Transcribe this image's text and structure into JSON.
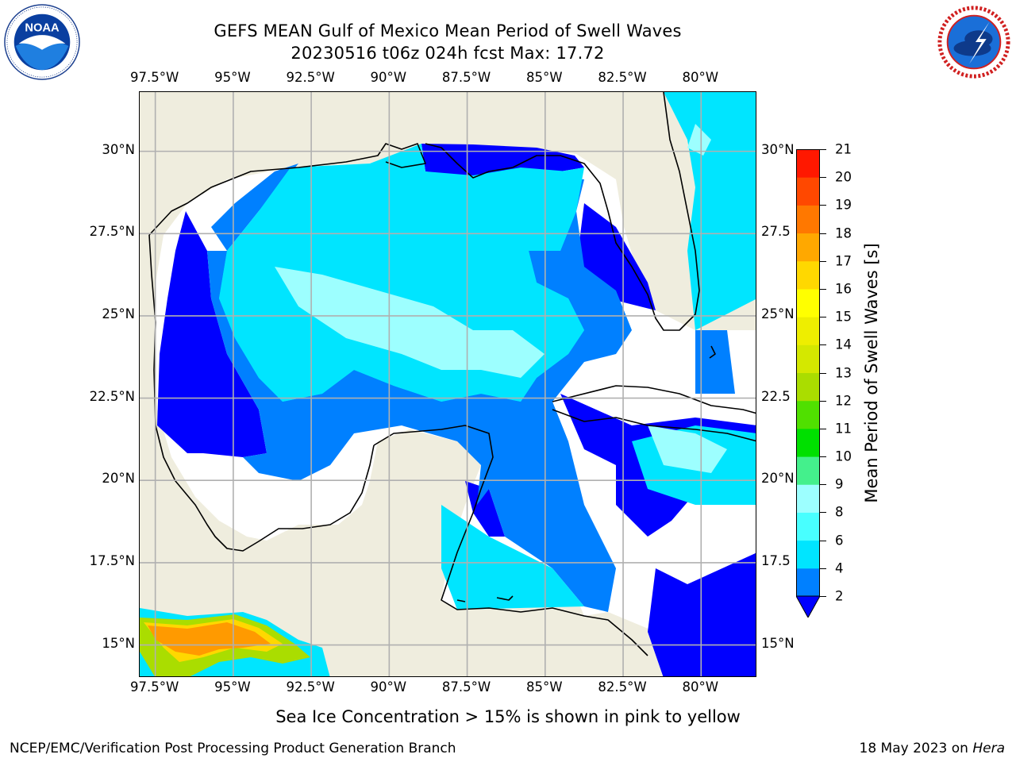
{
  "header": {
    "title_line1": "GEFS MEAN Gulf of Mexico Mean Period of Swell Waves",
    "title_line2": "20230516 t06z 024h fcst   Max: 17.72"
  },
  "logos": {
    "left": {
      "name": "NOAA",
      "text": "NOAA"
    },
    "right": {
      "name": "NATIONAL WEATHER SERVICE"
    }
  },
  "map": {
    "lon_labels": [
      "97.5°W",
      "95°W",
      "92.5°W",
      "90°W",
      "87.5°W",
      "85°W",
      "82.5°W",
      "80°W"
    ],
    "lat_labels_left": [
      "30°N",
      "27.5°N",
      "25°N",
      "22.5°N",
      "20°N",
      "17.5°N",
      "15°N"
    ],
    "lat_labels_right": [
      "30°N",
      "27.5",
      "25°N",
      "22.5",
      "20°N",
      "17.5",
      "15°N"
    ],
    "extent": {
      "lon_min": -98,
      "lon_max": -78.2,
      "lat_min": 14,
      "lat_max": 31.8
    },
    "colors": {
      "land": "#efedde",
      "no_data": "#ffffff",
      "coast": "#000000",
      "grid": "#b0b0b0"
    }
  },
  "colorbar": {
    "label": "Mean Period of Swell Waves [s]",
    "ticks": [
      "21",
      "20",
      "19",
      "18",
      "17",
      "16",
      "15",
      "14",
      "13",
      "12",
      "11",
      "10",
      "9",
      "8",
      "6",
      "4",
      "2"
    ],
    "colors": [
      "#0000ff",
      "#0080ff",
      "#00e5ff",
      "#48ffff",
      "#9dffff",
      "#44f08c",
      "#00e000",
      "#50e000",
      "#aadd00",
      "#d4e800",
      "#eeee00",
      "#ffff00",
      "#ffd800",
      "#ffa800",
      "#ff7800",
      "#ff4800",
      "#ff1800",
      "#ff0000"
    ]
  },
  "notes": {
    "sea_ice": "Sea Ice Concentration > 15% is shown in pink to yellow"
  },
  "footer": {
    "left": "NCEP/EMC/Verification Post Processing Product Generation Branch",
    "date": "18 May 2023 on ",
    "host": "Hera"
  }
}
